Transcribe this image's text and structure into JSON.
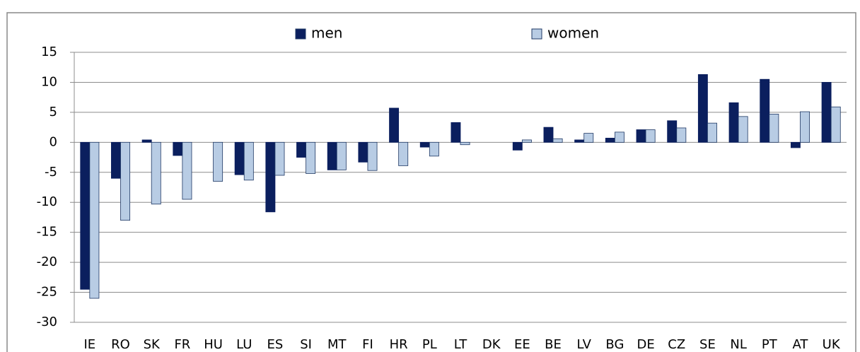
{
  "chart_data": {
    "type": "bar",
    "categories": [
      "IE",
      "RO",
      "SK",
      "FR",
      "HU",
      "LU",
      "ES",
      "SI",
      "MT",
      "FI",
      "HR",
      "PL",
      "LT",
      "DK",
      "EE",
      "BE",
      "LV",
      "BG",
      "DE",
      "CZ",
      "SE",
      "NL",
      "PT",
      "AT",
      "UK"
    ],
    "series": [
      {
        "name": "men",
        "color": "#0b1f5e",
        "values": [
          -24.5,
          -6,
          0.4,
          -2.2,
          0,
          -5.4,
          -11.6,
          -2.5,
          -4.6,
          -3.3,
          5.7,
          -0.8,
          3.3,
          0,
          -1.3,
          2.5,
          0.4,
          0.7,
          2.1,
          3.6,
          11.3,
          6.6,
          10.5,
          -0.9,
          10
        ]
      },
      {
        "name": "women",
        "color": "#b8cce4",
        "values": [
          -26,
          -13,
          -10.3,
          -9.5,
          -6.5,
          -6.3,
          -5.5,
          -5.2,
          -4.6,
          -4.7,
          -3.9,
          -2.3,
          -0.4,
          0,
          0.4,
          0.6,
          1.5,
          1.7,
          2.1,
          2.4,
          3.2,
          4.3,
          4.7,
          5.1,
          5.9
        ]
      }
    ],
    "ylim": [
      -30,
      15
    ],
    "yticks": [
      -30,
      -25,
      -20,
      -15,
      -10,
      -5,
      0,
      5,
      10,
      15
    ],
    "grid": true,
    "legend": "top"
  }
}
